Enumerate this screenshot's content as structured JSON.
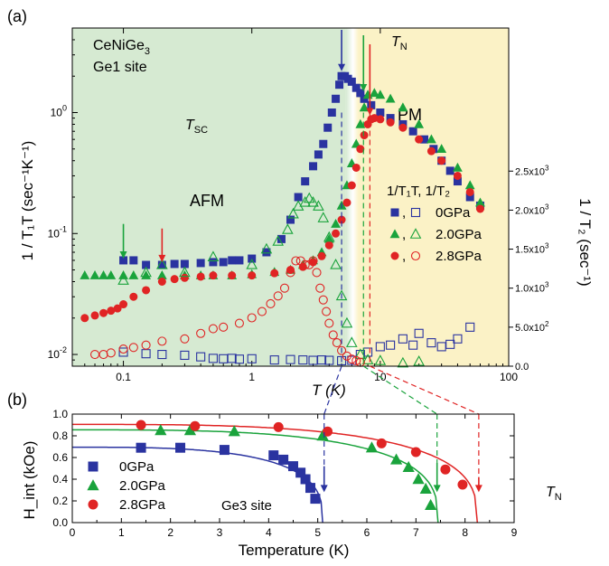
{
  "colors": {
    "blue": "#2a33a0",
    "green": "#1aa33c",
    "red": "#e02424",
    "afm_bg": "#d6ead2",
    "pm_bg": "#fbf2c6",
    "afm_text": "#2d6b2d",
    "pm_text": "#8a7e50"
  },
  "panel_a": {
    "label": "(a)",
    "sample": "CeNiGe",
    "sample_sub": "3",
    "site": "Ge1 site",
    "afm": "AFM",
    "pm": "PM",
    "tsc": "T",
    "tsc_sub": "SC",
    "tn": "T",
    "tn_sub": "N",
    "ylabel": "1 / T₁T (sec⁻¹K⁻¹)",
    "ylabel_right": "1 / T₂ (sec⁻¹)",
    "xlabel": "T (K)",
    "legend_title": "1/T₁T, 1/T₂",
    "legend_items": [
      {
        "label": "0GPa",
        "color": "#2a33a0",
        "shape": "square"
      },
      {
        "label": "2.0GPa",
        "color": "#1aa33c",
        "shape": "triangle"
      },
      {
        "label": "2.8GPa",
        "color": "#e02424",
        "shape": "circle"
      }
    ]
  },
  "panel_b": {
    "label": "(b)",
    "site": "Ge3 site",
    "tn": "T",
    "tn_sub": "N",
    "ylabel": "H_int (kOe)",
    "xlabel": "Temperature (K)",
    "legend_items": [
      {
        "label": "0GPa",
        "color": "#2a33a0",
        "shape": "square"
      },
      {
        "label": "2.0GPa",
        "color": "#1aa33c",
        "shape": "triangle"
      },
      {
        "label": "2.8GPa",
        "color": "#e02424",
        "shape": "circle"
      }
    ]
  },
  "chart_data": [
    {
      "type": "scatter",
      "title": "",
      "xlabel": "T (K)",
      "xscale": "log",
      "xlim": [
        0.04,
        100
      ],
      "xticks": [
        "0.1",
        "1",
        "10",
        "100"
      ],
      "ylabel": "1 / T1T (sec-1K-1)",
      "yscale": "log",
      "ylim": [
        0.008,
        5
      ],
      "yticks": [
        "10-2",
        "10-1",
        "100"
      ],
      "ylabel_right": "1 / T2 (sec-1)",
      "ylim_right": [
        0,
        2700
      ],
      "yticks_right": [
        "0.0",
        "5.0x10^2",
        "1.0x10^3",
        "1.5x10^3",
        "2.0x10^3",
        "2.5x10^3"
      ],
      "series": [
        {
          "name": "0GPa 1/T1T",
          "marker": "filled-square",
          "color": "#2a33a0",
          "axis": "left",
          "x": [
            0.1,
            0.12,
            0.15,
            0.2,
            0.25,
            0.3,
            0.4,
            0.5,
            0.6,
            0.7,
            0.8,
            1.0,
            1.3,
            1.7,
            2.0,
            2.3,
            2.6,
            3.0,
            3.3,
            3.6,
            3.9,
            4.2,
            4.5,
            4.8,
            5.0,
            5.3,
            5.6,
            6.0,
            6.5,
            7.0,
            7.5,
            8.5,
            10,
            12,
            15,
            18,
            22,
            26,
            30,
            35,
            40,
            50,
            60
          ],
          "y": [
            0.06,
            0.06,
            0.055,
            0.055,
            0.056,
            0.056,
            0.057,
            0.058,
            0.058,
            0.06,
            0.06,
            0.062,
            0.07,
            0.09,
            0.13,
            0.2,
            0.27,
            0.36,
            0.45,
            0.55,
            0.75,
            1.0,
            1.3,
            1.7,
            2.0,
            2.0,
            1.9,
            1.8,
            1.6,
            1.45,
            1.3,
            1.15,
            1.0,
            0.9,
            0.8,
            0.7,
            0.6,
            0.5,
            0.4,
            0.33,
            0.27,
            0.2,
            0.17
          ]
        },
        {
          "name": "2.0GPa 1/T1T",
          "marker": "filled-triangle",
          "color": "#1aa33c",
          "axis": "left",
          "x": [
            0.05,
            0.06,
            0.07,
            0.08,
            0.1,
            0.12,
            0.15,
            0.2,
            0.3,
            0.4,
            0.5,
            0.7,
            1.0,
            1.5,
            2.0,
            2.5,
            3.0,
            3.5,
            4.0,
            4.5,
            5.0,
            5.5,
            6.0,
            6.5,
            7.0,
            7.5,
            8.0,
            9.0,
            10,
            12,
            15,
            20,
            25,
            30,
            40,
            50,
            60
          ],
          "y": [
            0.045,
            0.045,
            0.045,
            0.045,
            0.045,
            0.045,
            0.045,
            0.045,
            0.045,
            0.045,
            0.045,
            0.045,
            0.046,
            0.048,
            0.05,
            0.055,
            0.06,
            0.07,
            0.09,
            0.12,
            0.17,
            0.25,
            0.38,
            0.55,
            0.8,
            1.1,
            1.4,
            1.45,
            1.4,
            1.3,
            1.1,
            0.8,
            0.6,
            0.5,
            0.35,
            0.25,
            0.18
          ]
        },
        {
          "name": "2.8GPa 1/T1T",
          "marker": "filled-circle",
          "color": "#e02424",
          "axis": "left",
          "x": [
            0.05,
            0.06,
            0.07,
            0.08,
            0.09,
            0.1,
            0.12,
            0.15,
            0.2,
            0.25,
            0.3,
            0.4,
            0.5,
            0.7,
            1.0,
            1.5,
            2.0,
            2.5,
            3.0,
            3.5,
            4.0,
            4.5,
            5.0,
            5.5,
            6.0,
            6.5,
            7.0,
            7.5,
            8.0,
            8.5,
            9.0,
            10,
            12,
            15,
            20,
            25,
            30,
            40,
            50,
            60
          ],
          "y": [
            0.02,
            0.021,
            0.022,
            0.023,
            0.024,
            0.026,
            0.03,
            0.034,
            0.04,
            0.042,
            0.043,
            0.044,
            0.045,
            0.045,
            0.045,
            0.047,
            0.05,
            0.053,
            0.058,
            0.065,
            0.08,
            0.1,
            0.13,
            0.18,
            0.25,
            0.35,
            0.5,
            0.65,
            0.8,
            0.88,
            0.9,
            0.88,
            0.83,
            0.75,
            0.6,
            0.48,
            0.4,
            0.3,
            0.22,
            0.16
          ]
        },
        {
          "name": "0GPa 1/T2",
          "marker": "open-square",
          "color": "#2a33a0",
          "axis": "right",
          "x": [
            0.1,
            0.15,
            0.2,
            0.3,
            0.4,
            0.5,
            0.6,
            0.7,
            0.8,
            1.0,
            1.5,
            2.0,
            2.5,
            3.0,
            3.5,
            4.0,
            5.0,
            6.0,
            7.0,
            8.0,
            10,
            12,
            15,
            18,
            20,
            25,
            30,
            35,
            40,
            50
          ],
          "y": [
            180,
            160,
            150,
            140,
            120,
            100,
            95,
            100,
            90,
            95,
            80,
            85,
            80,
            75,
            80,
            75,
            70,
            75,
            150,
            180,
            250,
            270,
            350,
            270,
            420,
            300,
            250,
            280,
            350,
            500
          ]
        },
        {
          "name": "2.0GPa 1/T2",
          "marker": "open-triangle",
          "color": "#1aa33c",
          "axis": "right",
          "x": [
            0.1,
            0.15,
            0.2,
            0.3,
            0.5,
            1.0,
            1.3,
            1.6,
            1.9,
            2.1,
            2.3,
            2.6,
            2.8,
            3.0,
            3.3,
            3.6,
            4.0,
            4.5,
            5.0,
            5.5,
            6.0,
            7.0,
            8.0,
            10,
            15,
            20
          ],
          "y": [
            1100,
            1200,
            1300,
            1200,
            1400,
            1300,
            1500,
            1600,
            1750,
            1950,
            2050,
            2100,
            2150,
            2100,
            2050,
            1900,
            1650,
            1300,
            900,
            550,
            300,
            150,
            80,
            70,
            40,
            60
          ]
        },
        {
          "name": "2.8GPa 1/T2",
          "marker": "open-circle",
          "color": "#e02424",
          "axis": "right",
          "x": [
            0.06,
            0.07,
            0.08,
            0.1,
            0.12,
            0.15,
            0.2,
            0.3,
            0.4,
            0.5,
            0.6,
            0.8,
            1.0,
            1.2,
            1.4,
            1.6,
            1.8,
            2.0,
            2.2,
            2.4,
            2.6,
            2.8,
            3.0,
            3.2,
            3.4,
            3.6,
            3.8,
            4.0,
            4.3,
            4.6,
            5.0,
            5.5,
            6.0,
            6.5,
            7.0
          ],
          "y": [
            150,
            150,
            170,
            220,
            240,
            270,
            320,
            350,
            420,
            480,
            500,
            550,
            620,
            700,
            800,
            900,
            1000,
            1200,
            1350,
            1350,
            1300,
            1300,
            1350,
            1200,
            1000,
            850,
            700,
            550,
            400,
            300,
            200,
            130,
            90,
            70,
            50
          ]
        }
      ],
      "annotations": [
        "CeNiGe3",
        "Ge1 site",
        "AFM",
        "PM",
        "TSC",
        "TN"
      ]
    },
    {
      "type": "scatter",
      "title": "",
      "xlabel": "Temperature (K)",
      "ylabel": "H_int (kOe)",
      "xlim": [
        0,
        9
      ],
      "ylim": [
        0,
        1.0
      ],
      "xticks": [
        "0",
        "1",
        "2",
        "3",
        "4",
        "5",
        "6",
        "7",
        "8",
        "9"
      ],
      "yticks": [
        "0.0",
        "0.2",
        "0.4",
        "0.6",
        "0.8",
        "1.0"
      ],
      "series": [
        {
          "name": "0GPa",
          "marker": "filled-square",
          "color": "#2a33a0",
          "x": [
            1.4,
            2.2,
            3.1,
            4.1,
            4.3,
            4.5,
            4.65,
            4.75,
            4.85,
            4.95
          ],
          "y": [
            0.69,
            0.69,
            0.67,
            0.62,
            0.58,
            0.52,
            0.46,
            0.4,
            0.32,
            0.22
          ]
        },
        {
          "name": "2.0GPa",
          "marker": "filled-triangle",
          "color": "#1aa33c",
          "x": [
            1.8,
            2.4,
            3.3,
            5.1,
            6.1,
            6.6,
            6.85,
            7.05,
            7.2,
            7.3
          ],
          "y": [
            0.85,
            0.85,
            0.84,
            0.8,
            0.69,
            0.58,
            0.51,
            0.4,
            0.31,
            0.16
          ]
        },
        {
          "name": "2.8GPa",
          "marker": "filled-circle",
          "color": "#e02424",
          "x": [
            1.4,
            2.5,
            4.2,
            5.2,
            6.3,
            7.0,
            7.6,
            7.95
          ],
          "y": [
            0.9,
            0.89,
            0.88,
            0.84,
            0.73,
            0.65,
            0.49,
            0.35
          ]
        }
      ],
      "fit_curves": [
        {
          "series": "0GPa",
          "tn": 5.1,
          "h0": 0.695
        },
        {
          "series": "2.0GPa",
          "tn": 7.45,
          "h0": 0.855
        },
        {
          "series": "2.8GPa",
          "tn": 8.25,
          "h0": 0.905
        }
      ],
      "annotations": [
        "Ge3 site",
        "TN"
      ]
    }
  ]
}
